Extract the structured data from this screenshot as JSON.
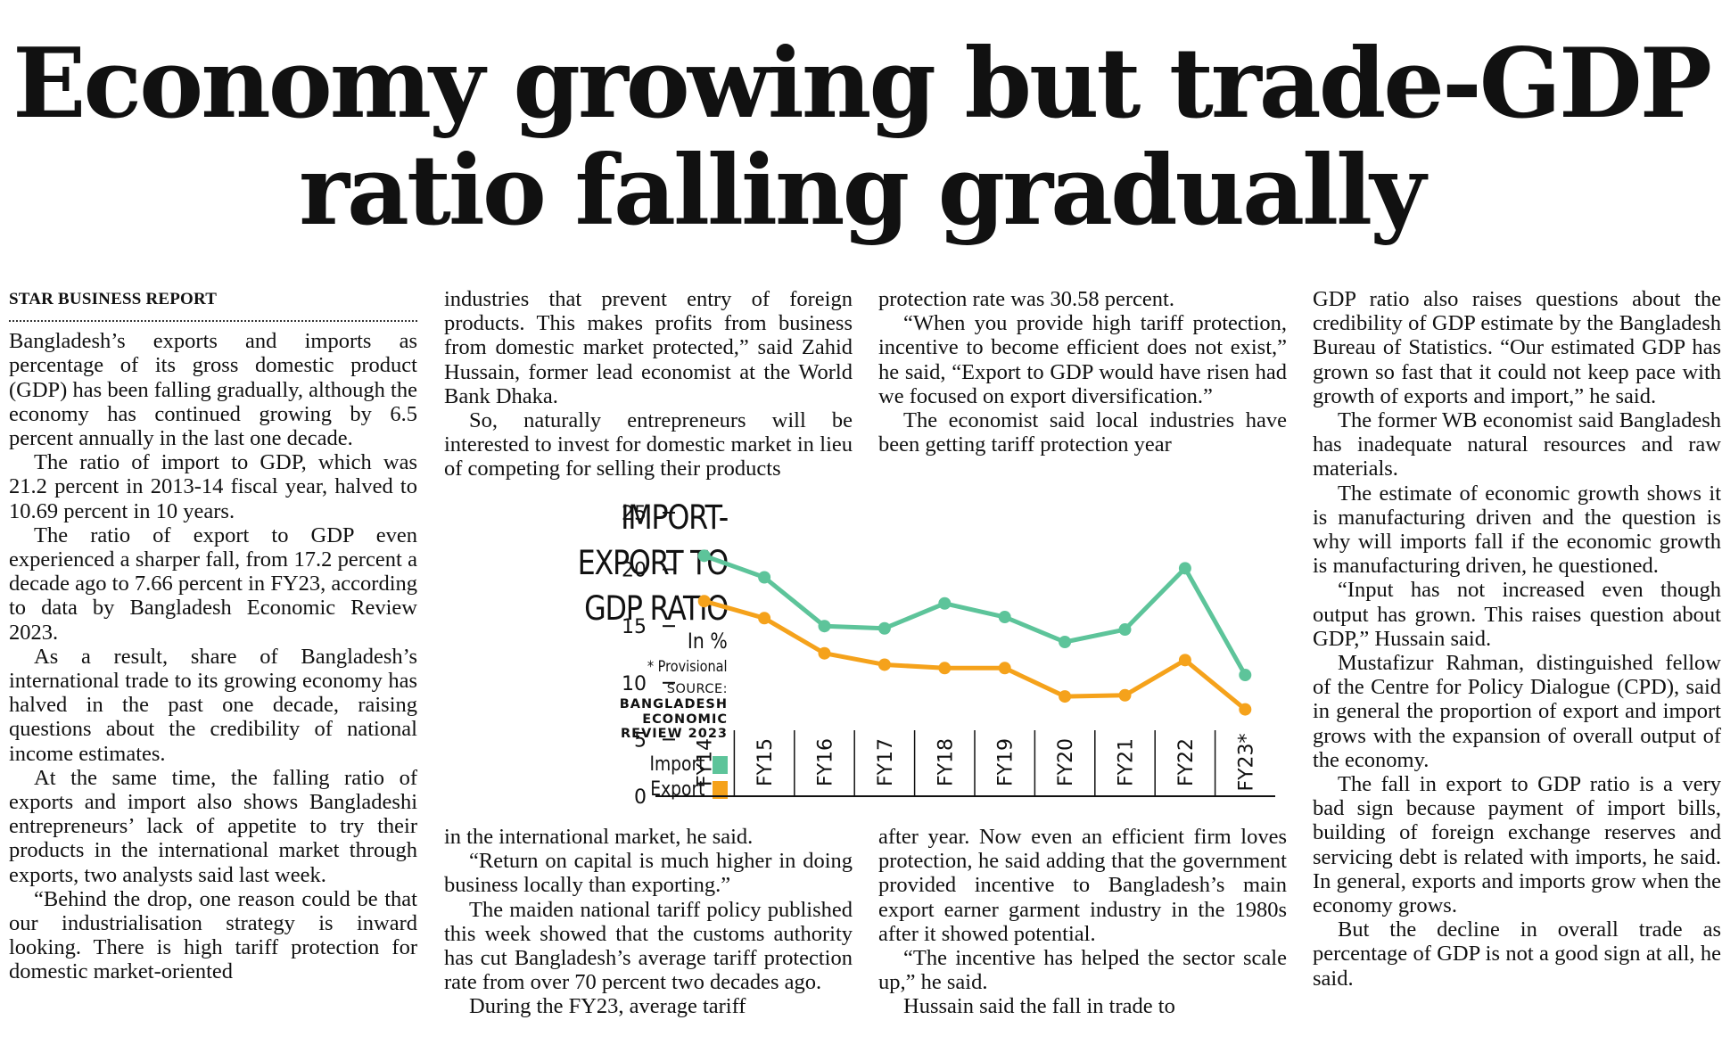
{
  "headline": {
    "line1": "Economy growing but trade-GDP",
    "line2": "ratio falling gradually"
  },
  "byline": "STAR BUSINESS REPORT",
  "columns": [
    [
      "Bangladesh’s exports and imports as percentage of its gross domestic product (GDP) has been falling gradually, although the economy has continued growing by 6.5 percent annually in the last one decade.",
      "The ratio of import to GDP, which was 21.2 percent in 2013-14 fiscal year, halved to 10.69 percent in 10 years.",
      "The ratio of export to GDP even experienced a sharper fall, from 17.2 percent a decade ago to 7.66 percent in FY23, according to data by Bangladesh Economic Review 2023.",
      "As a result, share of Bangladesh’s international trade to its growing economy has halved in the past one decade, raising questions about the credibility of national income estimates.",
      "At the same time, the falling ratio of exports and import also shows Bangladeshi entrepreneurs’ lack of appetite to try their products in the international market through exports, two analysts said last week.",
      "“Behind the drop, one reason could be that our industrialisation strategy is inward looking. There is high tariff protection for domestic market-oriented"
    ],
    [
      "industries that prevent entry of foreign products. This makes profits from business from domestic market protected,” said Zahid Hussain, former lead economist at the World Bank Dhaka.",
      "So, naturally entrepreneurs will be interested to invest for domestic market in lieu of competing for selling their products"
    ],
    [
      "in the international market, he said.",
      "“Return on capital is much higher in doing business locally than exporting.”",
      "The maiden national tariff policy published this week showed that the customs authority has cut Bangladesh’s average tariff protection rate from over 70 percent two decades ago.",
      "During the FY23, average tariff"
    ],
    [
      "protection rate was 30.58 percent.",
      "“When you provide high tariff protection, incentive to become efficient does not exist,” he said, “Export to GDP would have risen had we focused on export diversification.”",
      "The economist said local industries have been getting tariff protection year"
    ],
    [
      "after year. Now even an efficient firm loves protection, he said adding that the government provided incentive to Bangladesh’s main export earner garment industry in the 1980s after it showed potential.",
      "“The incentive has helped the sector scale up,” he said.",
      "Hussain said the fall in trade to"
    ],
    [
      "GDP ratio also raises questions about the credibility of GDP estimate by the Bangladesh Bureau of Statistics. “Our estimated GDP has grown so fast that it could not keep pace with growth of exports and import,” he said.",
      "The former WB economist said Bangladesh has inadequate natural resources and raw materials.",
      "The estimate of economic growth shows it is manufacturing driven and the question is why will imports fall if the economic growth is manufacturing driven, he questioned.",
      "“Input has not increased even though output has grown. This raises question about GDP,” Hussain said.",
      "Mustafizur Rahman, distinguished fellow of the Centre for Policy Dialogue (CPD), said in general the proportion of export and import grows with the expansion of overall output of the economy.",
      "The fall in export to GDP ratio is a very bad sign because payment of import bills, building of foreign exchange reserves and servicing debt is related with imports, he said. In general, exports and imports grow when the economy grows.",
      "But the decline in overall trade as percentage of GDP is not a good sign at all, he said."
    ]
  ],
  "chart_data": {
    "type": "line",
    "title_lines": [
      "IMPORT-",
      "EXPORT TO",
      "GDP RATIO"
    ],
    "unit": "In %",
    "note": "* Provisional",
    "source_label": "SOURCE:",
    "source_lines": [
      "BANGLADESH",
      "ECONOMIC",
      "REVIEW 2023"
    ],
    "categories": [
      "FY14",
      "FY15",
      "FY16",
      "FY17",
      "FY18",
      "FY19",
      "FY20",
      "FY21",
      "FY22",
      "FY23*"
    ],
    "series": [
      {
        "name": "Import",
        "color": "#5dc49a",
        "values": [
          21.2,
          19.3,
          15.0,
          14.8,
          17.0,
          15.8,
          13.6,
          14.7,
          20.1,
          10.69
        ]
      },
      {
        "name": "Export",
        "color": "#f5a21b",
        "values": [
          17.2,
          15.7,
          12.6,
          11.6,
          11.3,
          11.3,
          8.8,
          8.9,
          12.0,
          7.66
        ]
      }
    ],
    "yticks": [
      0,
      5,
      10,
      15,
      20,
      25
    ],
    "ylim": [
      0,
      25
    ],
    "grid": false,
    "legend": "left"
  }
}
